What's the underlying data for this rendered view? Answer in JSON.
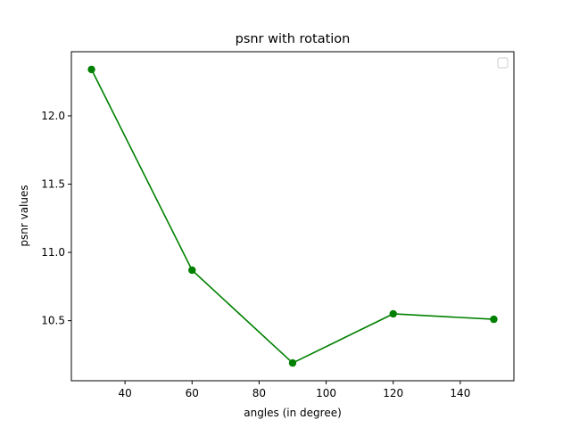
{
  "chart_data": {
    "type": "line",
    "title": "psnr with rotation",
    "xlabel": "angles (in degree)",
    "ylabel": "psnr values",
    "xlim": [
      24,
      156
    ],
    "ylim": [
      10.06,
      12.47
    ],
    "xticks": [
      40,
      60,
      80,
      100,
      120,
      140
    ],
    "yticks": [
      10.5,
      11.0,
      11.5,
      12.0
    ],
    "ytick_labels": [
      "10.5",
      "11.0",
      "11.5",
      "12.0"
    ],
    "grid": false,
    "legend": {
      "placement": "top-right",
      "entries": []
    },
    "series": [
      {
        "color": "#008000",
        "marker": "circle",
        "x": [
          30,
          60,
          90,
          120,
          150
        ],
        "y": [
          12.34,
          10.87,
          10.19,
          10.55,
          10.51
        ]
      }
    ]
  }
}
